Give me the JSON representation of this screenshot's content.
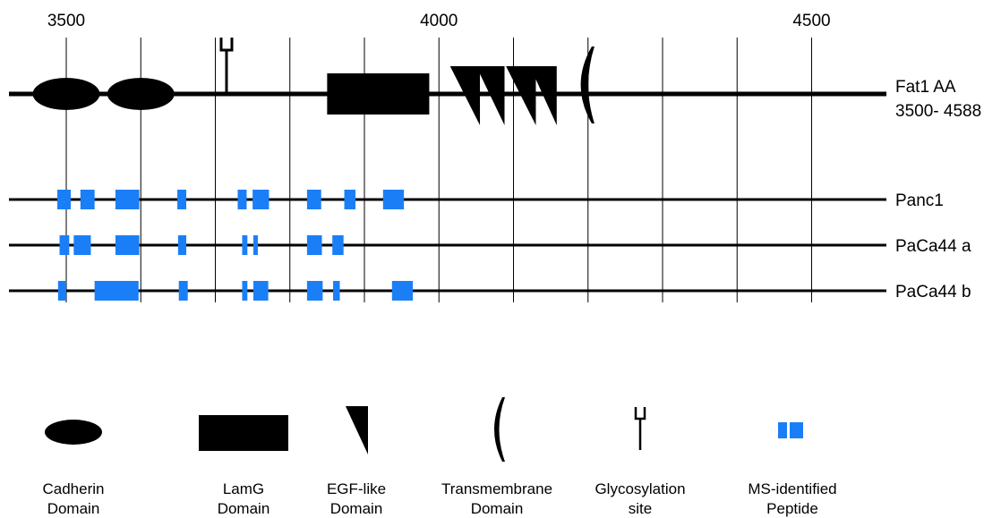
{
  "axis": {
    "ticks": [
      {
        "value": 3500,
        "label": "3500"
      },
      {
        "value": 4000,
        "label": "4000"
      },
      {
        "value": 4500,
        "label": "4500"
      }
    ],
    "gridlines": [
      3500,
      3600,
      3700,
      3800,
      3900,
      4000,
      4100,
      4200,
      4300,
      4400,
      4500
    ]
  },
  "protein": {
    "label_line1": "Fat1 AA",
    "label_line2": "3500- 4588",
    "range": [
      3500,
      4588
    ],
    "domains": [
      {
        "type": "cadherin",
        "start": 3455,
        "end": 3545
      },
      {
        "type": "cadherin",
        "start": 3555,
        "end": 3645
      },
      {
        "type": "glycosylation",
        "at": 3715
      },
      {
        "type": "lamg",
        "start": 3850,
        "end": 3987
      },
      {
        "type": "egf",
        "start": 4015,
        "end": 4055
      },
      {
        "type": "egf",
        "start": 4050,
        "end": 4088
      },
      {
        "type": "egf",
        "start": 4090,
        "end": 4130
      },
      {
        "type": "egf",
        "start": 4122,
        "end": 4158
      },
      {
        "type": "transmembrane",
        "start": 4185,
        "end": 4205
      }
    ]
  },
  "samples": [
    {
      "name": "Panc1",
      "peptides": [
        [
          3488,
          3506
        ],
        [
          3519,
          3538
        ],
        [
          3566,
          3598
        ],
        [
          3649,
          3661
        ],
        [
          3730,
          3742
        ],
        [
          3750,
          3772
        ],
        [
          3823,
          3842
        ],
        [
          3873,
          3888
        ],
        [
          3925,
          3953
        ]
      ]
    },
    {
      "name": "PaCa44 a",
      "peptides": [
        [
          3491,
          3504
        ],
        [
          3510,
          3533
        ],
        [
          3566,
          3598
        ],
        [
          3650,
          3661
        ],
        [
          3736,
          3743
        ],
        [
          3751,
          3757
        ],
        [
          3823,
          3843
        ],
        [
          3857,
          3872
        ]
      ]
    },
    {
      "name": "PaCa44 b",
      "peptides": [
        [
          3489,
          3500
        ],
        [
          3538,
          3597
        ],
        [
          3651,
          3663
        ],
        [
          3736,
          3743
        ],
        [
          3751,
          3771
        ],
        [
          3823,
          3844
        ],
        [
          3858,
          3867
        ],
        [
          3937,
          3965
        ]
      ]
    }
  ],
  "legend": [
    {
      "key": "cadherin",
      "line1": "Cadherin",
      "line2": "Domain",
      "icon": "cadherin-icon"
    },
    {
      "key": "lamg",
      "line1": "LamG",
      "line2": "Domain",
      "icon": "lamg-icon"
    },
    {
      "key": "egf",
      "line1": "EGF-like",
      "line2": "Domain",
      "icon": "egf-icon"
    },
    {
      "key": "transmembrane",
      "line1": "Transmembrane",
      "line2": "Domain",
      "icon": "transmembrane-icon"
    },
    {
      "key": "glycosylation",
      "line1": "Glycosylation",
      "line2": "site",
      "icon": "glycosylation-icon"
    },
    {
      "key": "peptide",
      "line1": "MS-identified",
      "line2": "Peptide",
      "icon": "peptide-icon"
    }
  ],
  "colors": {
    "peptide": "#1a7ff7",
    "domain": "#000000",
    "grid": "#000000"
  }
}
